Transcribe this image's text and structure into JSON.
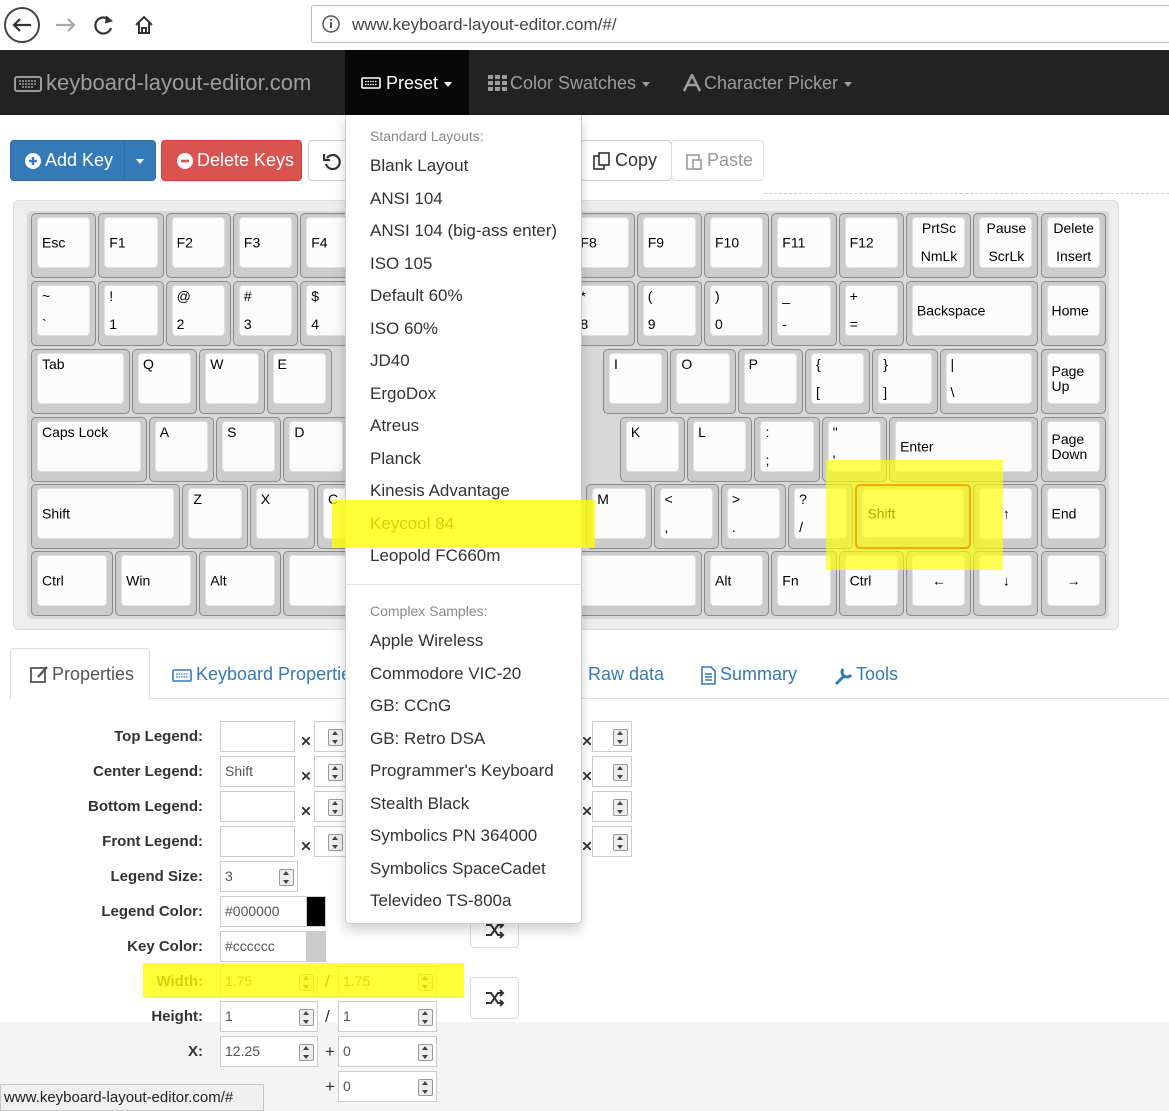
{
  "browser": {
    "url": "www.keyboard-layout-editor.com/#/"
  },
  "navbar": {
    "brand": "keyboard-layout-editor.com",
    "menus": [
      "Preset",
      "Color Swatches",
      "Character Picker"
    ]
  },
  "toolbar": {
    "add_key": "Add Key",
    "delete_keys": "Delete Keys",
    "copy": "Copy",
    "paste": "Paste"
  },
  "keyboard": {
    "rows": [
      [
        {
          "center": "Esc"
        },
        {
          "center": "F1"
        },
        {
          "center": "F2"
        },
        {
          "center": "F3"
        },
        {
          "center": "F4"
        },
        {
          "center": "F8"
        },
        {
          "center": "F9"
        },
        {
          "center": "F10"
        },
        {
          "center": "F11"
        },
        {
          "center": "F12"
        },
        {
          "top": "PrtSc",
          "bottom": "NmLk"
        },
        {
          "top": "Pause",
          "bottom": "ScrLk"
        },
        {
          "top": "Delete",
          "bottom": "Insert"
        }
      ],
      [
        {
          "top": "~",
          "bottom": "`"
        },
        {
          "top": "!",
          "bottom": "1"
        },
        {
          "top": "@",
          "bottom": "2"
        },
        {
          "top": "#",
          "bottom": "3"
        },
        {
          "top": "$",
          "bottom": "4"
        },
        {
          "top": "*",
          "bottom": "8"
        },
        {
          "top": "(",
          "bottom": "9"
        },
        {
          "top": ")",
          "bottom": "0"
        },
        {
          "top": "_",
          "bottom": "-"
        },
        {
          "top": "+",
          "bottom": "="
        },
        {
          "center": "Backspace"
        },
        {
          "center": "Home"
        }
      ],
      [
        {
          "top": "Tab"
        },
        {
          "top": "Q"
        },
        {
          "top": "W"
        },
        {
          "top": "E"
        },
        {
          "top": "I"
        },
        {
          "top": "O"
        },
        {
          "top": "P"
        },
        {
          "top": "{",
          "bottom": "["
        },
        {
          "top": "}",
          "bottom": "]"
        },
        {
          "top": "|",
          "bottom": "\\"
        },
        {
          "center": "Page Up"
        }
      ],
      [
        {
          "top": "Caps Lock"
        },
        {
          "top": "A"
        },
        {
          "top": "S"
        },
        {
          "top": "D"
        },
        {
          "top": "K"
        },
        {
          "top": "L"
        },
        {
          "top": ":",
          "bottom": ";"
        },
        {
          "top": "\"",
          "bottom": "'"
        },
        {
          "center": "Enter"
        },
        {
          "center": "Page Down"
        }
      ],
      [
        {
          "center": "Shift"
        },
        {
          "top": "Z"
        },
        {
          "top": "X"
        },
        {
          "top": "C"
        },
        {
          "top": "M"
        },
        {
          "top": "<",
          "bottom": ","
        },
        {
          "top": ">",
          "bottom": "."
        },
        {
          "top": "?",
          "bottom": "/"
        },
        {
          "center": "Shift"
        },
        {
          "center": "↑"
        },
        {
          "center": "End"
        }
      ],
      [
        {
          "center": "Ctrl"
        },
        {
          "center": "Win"
        },
        {
          "center": "Alt"
        },
        {
          "center": "Alt"
        },
        {
          "center": "Fn"
        },
        {
          "center": "Ctrl"
        },
        {
          "center": "←"
        },
        {
          "center": "↓"
        },
        {
          "center": "→"
        }
      ]
    ]
  },
  "preset_menu": {
    "standard_header": "Standard Layouts:",
    "standard": [
      "Blank Layout",
      "ANSI 104",
      "ANSI 104 (big-ass enter)",
      "ISO 105",
      "Default 60%",
      "ISO 60%",
      "JD40",
      "ErgoDox",
      "Atreus",
      "Planck",
      "Kinesis Advantage",
      "Keycool 84",
      "Leopold FC660m"
    ],
    "complex_header": "Complex Samples:",
    "complex": [
      "Apple Wireless",
      "Commodore VIC-20",
      "GB: CCnG",
      "GB: Retro DSA",
      "Programmer's Keyboard",
      "Stealth Black",
      "Symbolics PN 364000",
      "Symbolics SpaceCadet",
      "Televideo TS-800a"
    ]
  },
  "tabs": [
    "Properties",
    "Keyboard Properties",
    "Raw data",
    "Summary",
    "Tools"
  ],
  "properties": {
    "rows": [
      {
        "label": "Top Legend:"
      },
      {
        "label": "Center Legend:",
        "value": "Shift"
      },
      {
        "label": "Bottom Legend:"
      },
      {
        "label": "Front Legend:"
      },
      {
        "label": "Legend Size:",
        "value": "3"
      },
      {
        "label": "Legend Color:",
        "value": "#000000"
      },
      {
        "label": "Key Color:",
        "value": "#cccccc"
      },
      {
        "label": "Width:",
        "value": "1.75",
        "separator": "/",
        "value2": "1.75"
      },
      {
        "label": "Height:",
        "value": "1",
        "separator": "/",
        "value2": "1"
      },
      {
        "label": "X:",
        "value": "12.25",
        "separator": "+",
        "value2": "0"
      },
      {
        "separator": "+",
        "value2": "0"
      }
    ]
  },
  "status_bar": "www.keyboard-layout-editor.com/#"
}
